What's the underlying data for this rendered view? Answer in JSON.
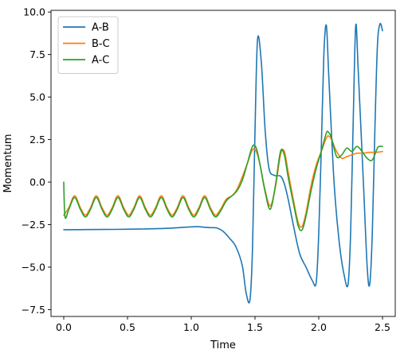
{
  "chart_data": {
    "type": "line",
    "title": "",
    "xlabel": "Time",
    "ylabel": "Momentum",
    "xlim": [
      -0.1,
      2.6
    ],
    "ylim": [
      -7.9,
      10.1
    ],
    "grid": false,
    "legend_position": "top-left",
    "xticks": [
      0.0,
      0.5,
      1.0,
      1.5,
      2.0,
      2.5
    ],
    "xtick_labels": [
      "0.0",
      "0.5",
      "1.0",
      "1.5",
      "2.0",
      "2.5"
    ],
    "yticks": [
      -7.5,
      -5.0,
      -2.5,
      0.0,
      2.5,
      5.0,
      7.5,
      10.0
    ],
    "ytick_labels": [
      "−7.5",
      "−5.0",
      "−2.5",
      "0.0",
      "2.5",
      "5.0",
      "7.5",
      "10.0"
    ],
    "series": [
      {
        "name": "A-B",
        "color": "#1f77b4",
        "x": [
          0.0,
          0.2,
          0.4,
          0.6,
          0.8,
          1.0,
          1.05,
          1.1,
          1.15,
          1.2,
          1.25,
          1.3,
          1.35,
          1.4,
          1.43,
          1.46,
          1.48,
          1.5,
          1.52,
          1.55,
          1.58,
          1.61,
          1.65,
          1.7,
          1.73,
          1.76,
          1.8,
          1.85,
          1.9,
          1.95,
          1.98,
          2.0,
          2.02,
          2.04,
          2.06,
          2.08,
          2.12,
          2.16,
          2.2,
          2.23,
          2.25,
          2.27,
          2.29,
          2.31,
          2.35,
          2.38,
          2.4,
          2.42,
          2.44,
          2.46,
          2.48,
          2.5
        ],
        "y": [
          -2.8,
          -2.79,
          -2.78,
          -2.76,
          -2.72,
          -2.63,
          -2.62,
          -2.65,
          -2.68,
          -2.7,
          -2.9,
          -3.3,
          -3.8,
          -4.9,
          -6.5,
          -6.95,
          -4.0,
          3.0,
          8.4,
          7.0,
          3.0,
          0.8,
          0.4,
          0.35,
          -0.1,
          -1.0,
          -2.5,
          -4.2,
          -5.0,
          -5.8,
          -5.9,
          -3.0,
          2.0,
          7.5,
          9.2,
          6.0,
          0.0,
          -3.5,
          -5.5,
          -6.0,
          -3.0,
          3.5,
          9.2,
          6.5,
          0.0,
          -5.0,
          -6.0,
          -3.0,
          3.0,
          8.0,
          9.3,
          8.9
        ]
      },
      {
        "name": "B-C",
        "color": "#ff7f0e",
        "x": [
          0.0,
          0.04,
          0.085,
          0.13,
          0.17,
          0.21,
          0.255,
          0.3,
          0.34,
          0.38,
          0.425,
          0.47,
          0.51,
          0.55,
          0.595,
          0.64,
          0.68,
          0.72,
          0.765,
          0.81,
          0.85,
          0.89,
          0.935,
          0.98,
          1.02,
          1.06,
          1.105,
          1.15,
          1.19,
          1.23,
          1.275,
          1.32,
          1.36,
          1.4,
          1.44,
          1.48,
          1.51,
          1.54,
          1.58,
          1.62,
          1.66,
          1.7,
          1.73,
          1.76,
          1.8,
          1.84,
          1.87,
          1.9,
          1.94,
          1.98,
          2.02,
          2.06,
          2.08,
          2.1,
          2.14,
          2.18,
          2.22,
          2.26,
          2.3,
          2.35,
          2.4,
          2.45,
          2.5
        ],
        "y": [
          -1.95,
          -1.5,
          -0.8,
          -1.5,
          -1.95,
          -1.5,
          -0.8,
          -1.5,
          -1.95,
          -1.5,
          -0.8,
          -1.5,
          -1.95,
          -1.5,
          -0.8,
          -1.5,
          -1.95,
          -1.5,
          -0.8,
          -1.5,
          -1.95,
          -1.5,
          -0.8,
          -1.5,
          -1.95,
          -1.5,
          -0.8,
          -1.5,
          -1.95,
          -1.6,
          -1.0,
          -0.8,
          -0.4,
          0.3,
          1.1,
          1.9,
          1.8,
          1.0,
          -0.5,
          -1.4,
          -0.3,
          1.6,
          1.8,
          0.6,
          -1.0,
          -2.4,
          -2.6,
          -1.8,
          -0.2,
          1.0,
          1.8,
          2.6,
          2.7,
          2.5,
          1.8,
          1.4,
          1.5,
          1.6,
          1.7,
          1.7,
          1.75,
          1.75,
          1.8
        ]
      },
      {
        "name": "A-C",
        "color": "#2ca02c",
        "x": [
          0.0,
          0.01,
          0.04,
          0.085,
          0.13,
          0.17,
          0.21,
          0.255,
          0.3,
          0.34,
          0.38,
          0.425,
          0.47,
          0.51,
          0.55,
          0.595,
          0.64,
          0.68,
          0.72,
          0.765,
          0.81,
          0.85,
          0.89,
          0.935,
          0.98,
          1.02,
          1.06,
          1.105,
          1.15,
          1.19,
          1.23,
          1.275,
          1.32,
          1.36,
          1.4,
          1.44,
          1.48,
          1.51,
          1.54,
          1.58,
          1.62,
          1.66,
          1.7,
          1.73,
          1.76,
          1.8,
          1.84,
          1.87,
          1.9,
          1.94,
          1.98,
          2.02,
          2.06,
          2.08,
          2.1,
          2.14,
          2.18,
          2.22,
          2.26,
          2.3,
          2.34,
          2.38,
          2.42,
          2.46,
          2.48,
          2.5
        ],
        "y": [
          0.0,
          -2.05,
          -1.6,
          -0.9,
          -1.6,
          -2.05,
          -1.6,
          -0.9,
          -1.6,
          -2.05,
          -1.6,
          -0.9,
          -1.6,
          -2.05,
          -1.6,
          -0.9,
          -1.6,
          -2.05,
          -1.6,
          -0.9,
          -1.6,
          -2.05,
          -1.6,
          -0.9,
          -1.6,
          -2.05,
          -1.6,
          -0.9,
          -1.6,
          -2.05,
          -1.7,
          -1.1,
          -0.8,
          -0.5,
          0.1,
          1.1,
          2.1,
          2.0,
          1.0,
          -0.6,
          -1.6,
          -0.2,
          1.8,
          1.6,
          0.3,
          -1.2,
          -2.6,
          -2.8,
          -2.0,
          -0.5,
          0.8,
          1.8,
          2.9,
          2.9,
          2.6,
          1.5,
          1.6,
          2.0,
          1.8,
          2.1,
          1.8,
          1.4,
          1.3,
          2.0,
          2.1,
          2.1
        ]
      }
    ]
  }
}
